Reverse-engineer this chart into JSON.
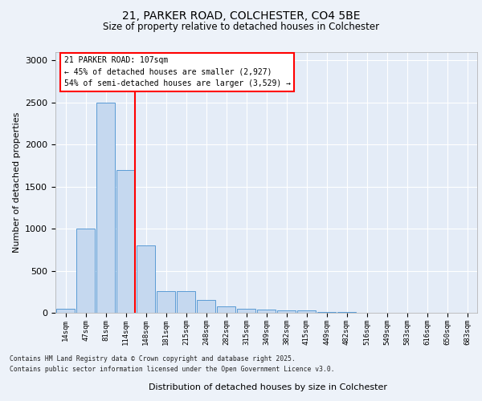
{
  "title1": "21, PARKER ROAD, COLCHESTER, CO4 5BE",
  "title2": "Size of property relative to detached houses in Colchester",
  "xlabel": "Distribution of detached houses by size in Colchester",
  "ylabel": "Number of detached properties",
  "categories": [
    "14sqm",
    "47sqm",
    "81sqm",
    "114sqm",
    "148sqm",
    "181sqm",
    "215sqm",
    "248sqm",
    "282sqm",
    "315sqm",
    "349sqm",
    "382sqm",
    "415sqm",
    "449sqm",
    "482sqm",
    "516sqm",
    "549sqm",
    "583sqm",
    "616sqm",
    "650sqm",
    "683sqm"
  ],
  "values": [
    50,
    1000,
    2500,
    1700,
    800,
    260,
    260,
    155,
    80,
    50,
    40,
    30,
    25,
    5,
    5,
    3,
    3,
    2,
    2,
    2,
    3
  ],
  "bar_color": "#c5d8ef",
  "bar_edge_color": "#5a9bd5",
  "red_line_index": 3,
  "annotation_title": "21 PARKER ROAD: 107sqm",
  "annotation_line1": "← 45% of detached houses are smaller (2,927)",
  "annotation_line2": "54% of semi-detached houses are larger (3,529) →",
  "ylim": [
    0,
    3100
  ],
  "yticks": [
    0,
    500,
    1000,
    1500,
    2000,
    2500,
    3000
  ],
  "footnote1": "Contains HM Land Registry data © Crown copyright and database right 2025.",
  "footnote2": "Contains public sector information licensed under the Open Government Licence v3.0.",
  "fig_bg_color": "#edf2f9",
  "plot_bg_color": "#e4ecf7",
  "grid_color": "#ffffff"
}
